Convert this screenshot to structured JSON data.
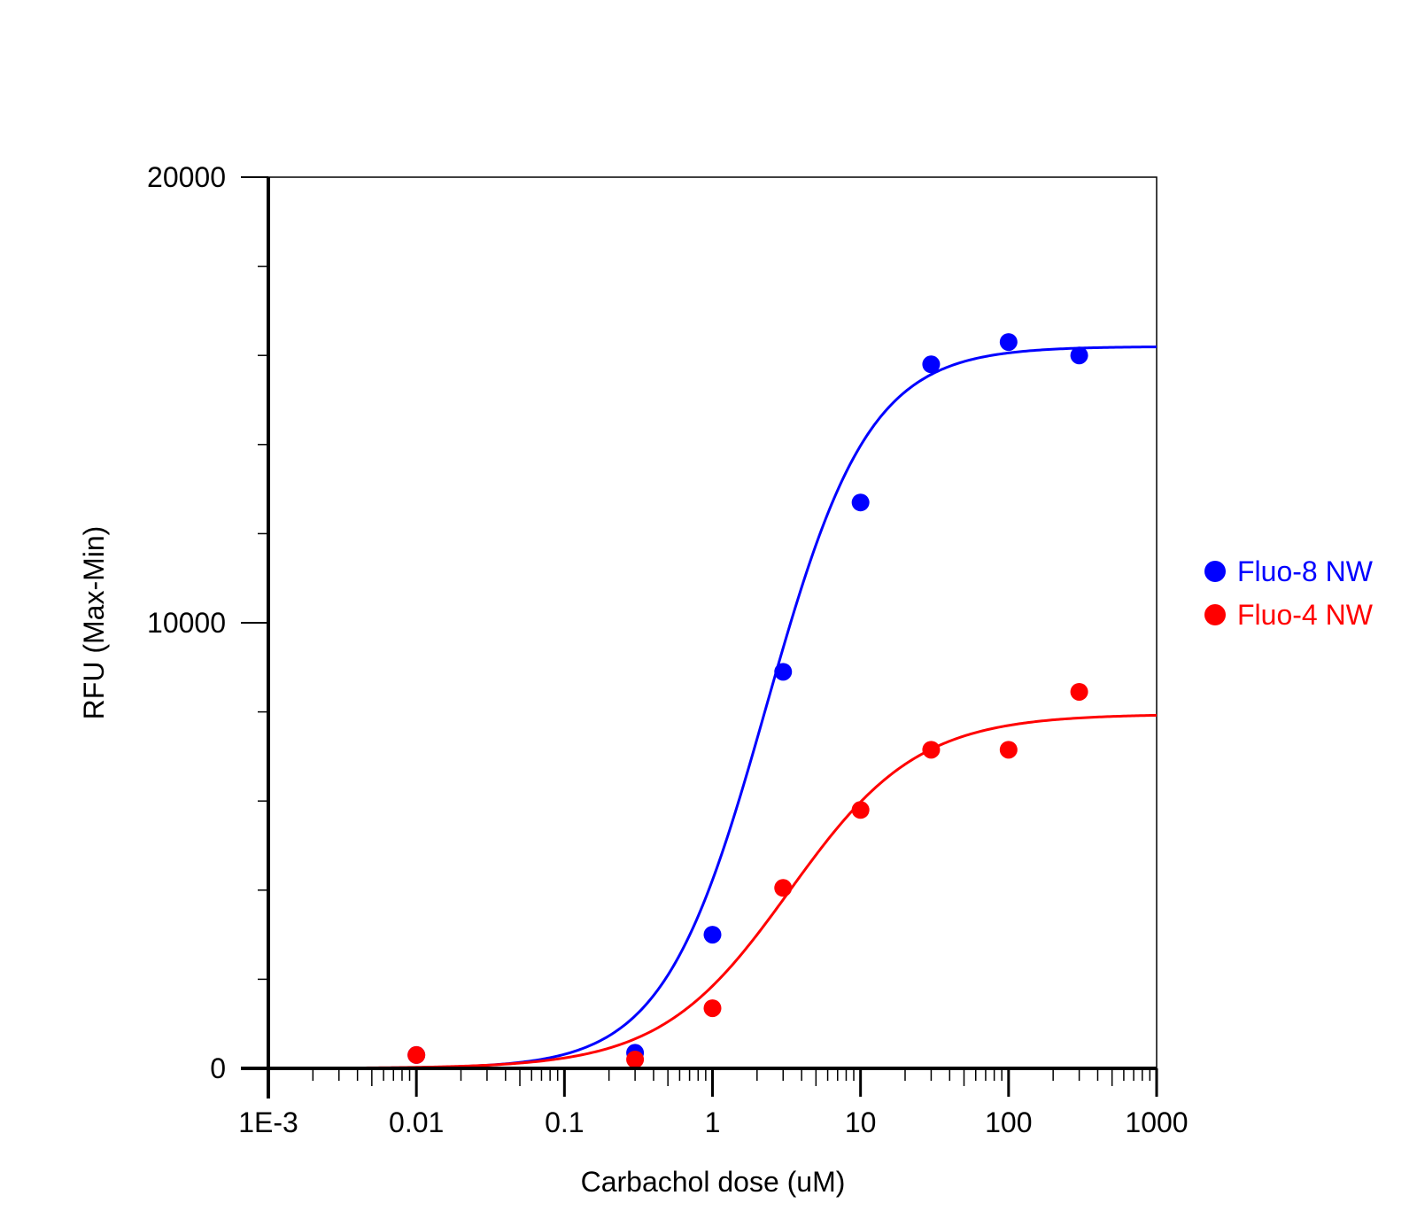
{
  "chart_data": {
    "type": "scatter",
    "title": "",
    "xlabel": "Carbachol dose (uM)",
    "ylabel": "RFU (Max-Min)",
    "x_scale": "log",
    "xlim": [
      0.001,
      1000
    ],
    "ylim": [
      0,
      20000
    ],
    "x_tick_values": [
      0.001,
      0.01,
      0.1,
      1,
      10,
      100,
      1000
    ],
    "x_tick_labels": [
      "1E-3",
      "0.01",
      "0.1",
      "1",
      "10",
      "100",
      "1000"
    ],
    "y_tick_values": [
      0,
      10000,
      20000
    ],
    "y_tick_labels": [
      "0",
      "10000",
      "20000"
    ],
    "y_minor_step": 2000,
    "grid": false,
    "legend_position": "right",
    "series": [
      {
        "name": "Fluo-8 NW",
        "color": "#0000ff",
        "x": [
          0.01,
          0.3,
          1,
          3,
          10,
          30,
          100,
          300
        ],
        "y": [
          300,
          350,
          3000,
          8900,
          12700,
          15800,
          16300,
          16000
        ],
        "fit": {
          "model": "4PL",
          "bottom": 0,
          "top": 16200,
          "ec50": 2.3,
          "hill": 1.25
        }
      },
      {
        "name": "Fluo-4 NW",
        "color": "#ff0000",
        "x": [
          0.01,
          0.3,
          1,
          3,
          10,
          30,
          100,
          300
        ],
        "y": [
          300,
          200,
          1350,
          4050,
          5800,
          7150,
          7150,
          8450
        ],
        "fit": {
          "model": "4PL",
          "bottom": 0,
          "top": 7950,
          "ec50": 3.3,
          "hill": 1.0
        }
      }
    ]
  }
}
